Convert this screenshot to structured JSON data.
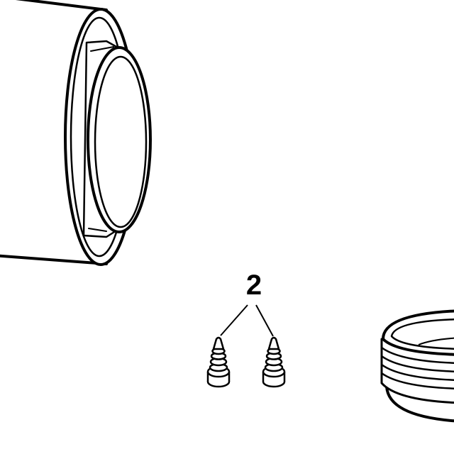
{
  "diagram": {
    "type": "exploded-parts-drawing",
    "callouts": [
      {
        "label": "2",
        "part": "screw",
        "quantity_shown": 2
      }
    ],
    "parts": [
      {
        "id": "pipe-end-with-collar"
      },
      {
        "id": "screw-left"
      },
      {
        "id": "screw-right"
      },
      {
        "id": "threaded-cap"
      }
    ],
    "colors": {
      "line": "#000000",
      "fill": "#ffffff"
    }
  }
}
